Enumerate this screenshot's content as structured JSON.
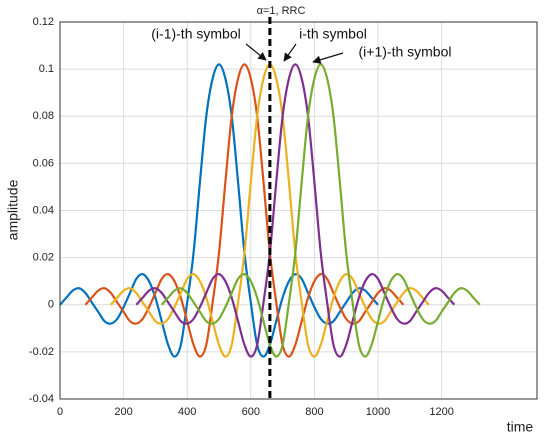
{
  "chart_data": {
    "type": "line",
    "x": [
      0,
      20,
      40,
      60,
      80,
      100,
      120,
      140,
      160,
      180,
      200,
      220,
      240,
      260,
      280,
      300,
      320,
      340,
      360,
      380,
      400,
      420,
      440,
      460,
      480,
      500,
      520,
      540,
      560,
      580,
      600,
      620,
      640,
      660,
      680,
      700,
      720,
      740,
      760,
      780,
      800,
      820,
      840,
      860,
      880,
      900,
      920,
      940,
      960,
      980,
      1000,
      1020,
      1040,
      1060,
      1080,
      1100,
      1120,
      1140,
      1160,
      1180,
      1200,
      1220,
      1240,
      1260,
      1280,
      1300,
      1320
    ],
    "series": [
      {
        "color": "#0072BD",
        "values": [
          0,
          0.003,
          0.006,
          0.007,
          0.005,
          0.001,
          -0.003,
          -0.007,
          -0.008,
          -0.006,
          -0.001,
          0.005,
          0.011,
          0.013,
          0.01,
          0.003,
          -0.007,
          -0.017,
          -0.022,
          -0.017,
          0.001,
          0.022,
          0.052,
          0.08,
          0.096,
          0.102,
          0.096,
          0.08,
          0.052,
          0.022,
          0.001,
          -0.017,
          -0.022,
          -0.017,
          -0.007,
          0.003,
          0.01,
          0.013,
          0.011,
          0.005,
          -0.001,
          -0.006,
          -0.008,
          -0.007,
          -0.003,
          0.001,
          0.005,
          0.007,
          0.006,
          0.003,
          0,
          null,
          null,
          null,
          null,
          null,
          null,
          null,
          null,
          null,
          null,
          null,
          null,
          null,
          null,
          null,
          null
        ]
      },
      {
        "color": "#D95319",
        "values": [
          null,
          null,
          null,
          null,
          0,
          0.003,
          0.006,
          0.007,
          0.005,
          0.001,
          -0.003,
          -0.007,
          -0.008,
          -0.006,
          -0.001,
          0.005,
          0.011,
          0.013,
          0.01,
          0.003,
          -0.007,
          -0.017,
          -0.022,
          -0.017,
          0.001,
          0.022,
          0.052,
          0.08,
          0.096,
          0.102,
          0.096,
          0.08,
          0.052,
          0.022,
          0.001,
          -0.017,
          -0.022,
          -0.017,
          -0.007,
          0.003,
          0.01,
          0.013,
          0.011,
          0.005,
          -0.001,
          -0.006,
          -0.008,
          -0.007,
          -0.003,
          0.001,
          0.005,
          0.007,
          0.006,
          0.003,
          0,
          null,
          null,
          null,
          null,
          null,
          null,
          null,
          null,
          null,
          null,
          null,
          null
        ]
      },
      {
        "color": "#EDB120",
        "values": [
          null,
          null,
          null,
          null,
          null,
          null,
          null,
          null,
          0,
          0.003,
          0.006,
          0.007,
          0.005,
          0.001,
          -0.003,
          -0.007,
          -0.008,
          -0.006,
          -0.001,
          0.005,
          0.011,
          0.013,
          0.01,
          0.003,
          -0.007,
          -0.017,
          -0.022,
          -0.017,
          0.001,
          0.022,
          0.052,
          0.08,
          0.096,
          0.102,
          0.096,
          0.08,
          0.052,
          0.022,
          0.001,
          -0.017,
          -0.022,
          -0.017,
          -0.007,
          0.003,
          0.01,
          0.013,
          0.011,
          0.005,
          -0.001,
          -0.006,
          -0.008,
          -0.007,
          -0.003,
          0.001,
          0.005,
          0.007,
          0.006,
          0.003,
          0,
          null,
          null,
          null,
          null,
          null,
          null,
          null,
          null
        ]
      },
      {
        "color": "#7E2F8E",
        "values": [
          null,
          null,
          null,
          null,
          null,
          null,
          null,
          null,
          null,
          null,
          null,
          null,
          0,
          0.003,
          0.006,
          0.007,
          0.005,
          0.001,
          -0.003,
          -0.007,
          -0.008,
          -0.006,
          -0.001,
          0.005,
          0.011,
          0.013,
          0.01,
          0.003,
          -0.007,
          -0.017,
          -0.022,
          -0.017,
          0.001,
          0.022,
          0.052,
          0.08,
          0.096,
          0.102,
          0.096,
          0.08,
          0.052,
          0.022,
          0.001,
          -0.017,
          -0.022,
          -0.017,
          -0.007,
          0.003,
          0.01,
          0.013,
          0.011,
          0.005,
          -0.001,
          -0.006,
          -0.008,
          -0.007,
          -0.003,
          0.001,
          0.005,
          0.007,
          0.006,
          0.003,
          0,
          null,
          null,
          null,
          null
        ]
      },
      {
        "color": "#77AC30",
        "values": [
          null,
          null,
          null,
          null,
          null,
          null,
          null,
          null,
          null,
          null,
          null,
          null,
          null,
          null,
          null,
          null,
          0,
          0.003,
          0.006,
          0.007,
          0.005,
          0.001,
          -0.003,
          -0.007,
          -0.008,
          -0.006,
          -0.001,
          0.005,
          0.011,
          0.013,
          0.01,
          0.003,
          -0.007,
          -0.017,
          -0.022,
          -0.017,
          0.001,
          0.022,
          0.052,
          0.08,
          0.096,
          0.102,
          0.096,
          0.08,
          0.052,
          0.022,
          0.001,
          -0.017,
          -0.022,
          -0.017,
          -0.007,
          0.003,
          0.01,
          0.013,
          0.011,
          0.005,
          -0.001,
          -0.006,
          -0.008,
          -0.007,
          -0.003,
          0.001,
          0.005,
          0.007,
          0.006,
          0.003,
          0
        ]
      }
    ],
    "xlabel": "time",
    "ylabel": "amplitude",
    "xlim": [
      0,
      1500
    ],
    "xticks": [
      0,
      200,
      400,
      600,
      800,
      1000,
      1200
    ],
    "ylim": [
      -0.04,
      0.12
    ],
    "yticks": [
      -0.04,
      -0.02,
      0,
      0.02,
      0.04,
      0.06,
      0.08,
      0.1,
      0.12
    ],
    "grid": true,
    "reference_line": {
      "x": 660,
      "label": "α=1, RRC"
    },
    "annotations": [
      "(i-1)-th symbol",
      "i-th symbol",
      "(i+1)-th symbol"
    ]
  }
}
